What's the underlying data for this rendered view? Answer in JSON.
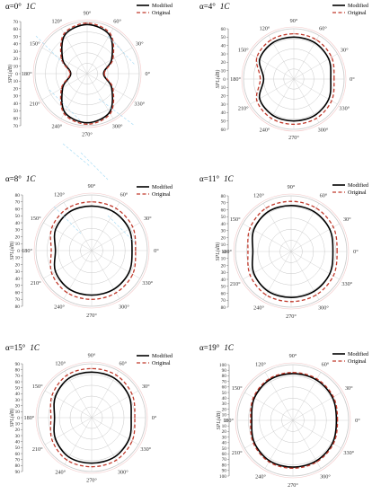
{
  "figure": {
    "legend": {
      "modified": "Modified",
      "original": "Original"
    },
    "ylabel": "SPL(dB)",
    "angle_labels": [
      "0°",
      "30°",
      "60°",
      "90°",
      "120°",
      "150°",
      "180°",
      "210°",
      "240°",
      "270°",
      "300°",
      "330°"
    ],
    "colors": {
      "modified": "#000000",
      "original": "#c0392b",
      "grid": "#c8c8c8",
      "overlay": "#8fd3f4"
    }
  },
  "chart_data": [
    {
      "type": "line",
      "projection": "polar",
      "title_alpha": "α=0°",
      "title_unit": "1C",
      "theta_deg": [
        0,
        30,
        60,
        90,
        120,
        150,
        180,
        210,
        240,
        270,
        300,
        330
      ],
      "rlim": [
        0,
        70
      ],
      "rticks": [
        "70",
        "60",
        "50",
        "40",
        "30",
        "20",
        "10",
        "0",
        "10",
        "20",
        "30",
        "40",
        "50",
        "60",
        "70"
      ],
      "series": [
        {
          "name": "Modified",
          "values": [
            22,
            38,
            60,
            66,
            60,
            38,
            22,
            38,
            60,
            66,
            60,
            38
          ]
        },
        {
          "name": "Original",
          "values": [
            23,
            40,
            62,
            68,
            62,
            40,
            23,
            40,
            62,
            68,
            62,
            40
          ]
        }
      ]
    },
    {
      "type": "line",
      "projection": "polar",
      "title_alpha": "α=4°",
      "title_unit": "1C",
      "theta_deg": [
        0,
        30,
        60,
        90,
        120,
        150,
        180,
        210,
        240,
        270,
        300,
        330
      ],
      "rlim": [
        0,
        60
      ],
      "rticks": [
        "60",
        "50",
        "40",
        "30",
        "20",
        "10",
        "0",
        "10",
        "20",
        "30",
        "40",
        "50",
        "60"
      ],
      "series": [
        {
          "name": "Modified",
          "values": [
            44,
            48,
            50,
            50,
            50,
            47,
            36,
            47,
            50,
            50,
            50,
            48
          ]
        },
        {
          "name": "Original",
          "values": [
            48,
            52,
            54,
            54,
            54,
            51,
            40,
            51,
            54,
            54,
            54,
            52
          ]
        }
      ]
    },
    {
      "type": "line",
      "projection": "polar",
      "title_alpha": "α=8°",
      "title_unit": "1C",
      "theta_deg": [
        0,
        30,
        60,
        90,
        120,
        150,
        180,
        210,
        240,
        270,
        300,
        330
      ],
      "rlim": [
        0,
        80
      ],
      "rticks": [
        "80",
        "70",
        "60",
        "50",
        "40",
        "30",
        "20",
        "10",
        "0",
        "10",
        "20",
        "30",
        "40",
        "50",
        "60",
        "70",
        "80"
      ],
      "series": [
        {
          "name": "Modified",
          "values": [
            58,
            62,
            64,
            64,
            64,
            60,
            52,
            60,
            64,
            64,
            64,
            62
          ]
        },
        {
          "name": "Original",
          "values": [
            63,
            68,
            70,
            70,
            70,
            66,
            58,
            66,
            70,
            70,
            70,
            68
          ]
        }
      ]
    },
    {
      "type": "line",
      "projection": "polar",
      "title_alpha": "α=11°",
      "title_unit": "1C",
      "theta_deg": [
        0,
        30,
        60,
        90,
        120,
        150,
        180,
        210,
        240,
        270,
        300,
        330
      ],
      "rlim": [
        0,
        80
      ],
      "rticks": [
        "80",
        "70",
        "60",
        "50",
        "40",
        "30",
        "20",
        "10",
        "0",
        "10",
        "20",
        "30",
        "40",
        "50",
        "60",
        "70",
        "80"
      ],
      "series": [
        {
          "name": "Modified",
          "values": [
            60,
            64,
            66,
            66,
            66,
            62,
            55,
            62,
            66,
            66,
            66,
            64
          ]
        },
        {
          "name": "Original",
          "values": [
            66,
            70,
            72,
            72,
            72,
            68,
            62,
            68,
            72,
            72,
            72,
            70
          ]
        }
      ]
    },
    {
      "type": "line",
      "projection": "polar",
      "title_alpha": "α=15°",
      "title_unit": "1C",
      "theta_deg": [
        0,
        30,
        60,
        90,
        120,
        150,
        180,
        210,
        240,
        270,
        300,
        330
      ],
      "rlim": [
        0,
        90
      ],
      "rticks": [
        "90",
        "80",
        "70",
        "60",
        "50",
        "40",
        "30",
        "20",
        "10",
        "0",
        "10",
        "20",
        "30",
        "40",
        "50",
        "60",
        "70",
        "80",
        "90"
      ],
      "series": [
        {
          "name": "Modified",
          "values": [
            66,
            72,
            76,
            76,
            76,
            70,
            62,
            70,
            76,
            76,
            76,
            72
          ]
        },
        {
          "name": "Original",
          "values": [
            72,
            78,
            82,
            82,
            82,
            76,
            68,
            76,
            82,
            82,
            82,
            78
          ]
        }
      ]
    },
    {
      "type": "line",
      "projection": "polar",
      "title_alpha": "α=19°",
      "title_unit": "1C",
      "theta_deg": [
        0,
        30,
        60,
        90,
        120,
        150,
        180,
        210,
        240,
        270,
        300,
        330
      ],
      "rlim": [
        0,
        100
      ],
      "rticks": [
        "100",
        "90",
        "80",
        "70",
        "60",
        "50",
        "40",
        "30",
        "20",
        "10",
        "0",
        "10",
        "20",
        "30",
        "40",
        "50",
        "60",
        "70",
        "80",
        "90",
        "100"
      ],
      "series": [
        {
          "name": "Modified",
          "values": [
            78,
            82,
            84,
            84,
            84,
            80,
            74,
            80,
            84,
            84,
            84,
            82
          ]
        },
        {
          "name": "Original",
          "values": [
            80,
            84,
            86,
            86,
            86,
            82,
            76,
            82,
            86,
            86,
            86,
            84
          ]
        }
      ]
    }
  ]
}
